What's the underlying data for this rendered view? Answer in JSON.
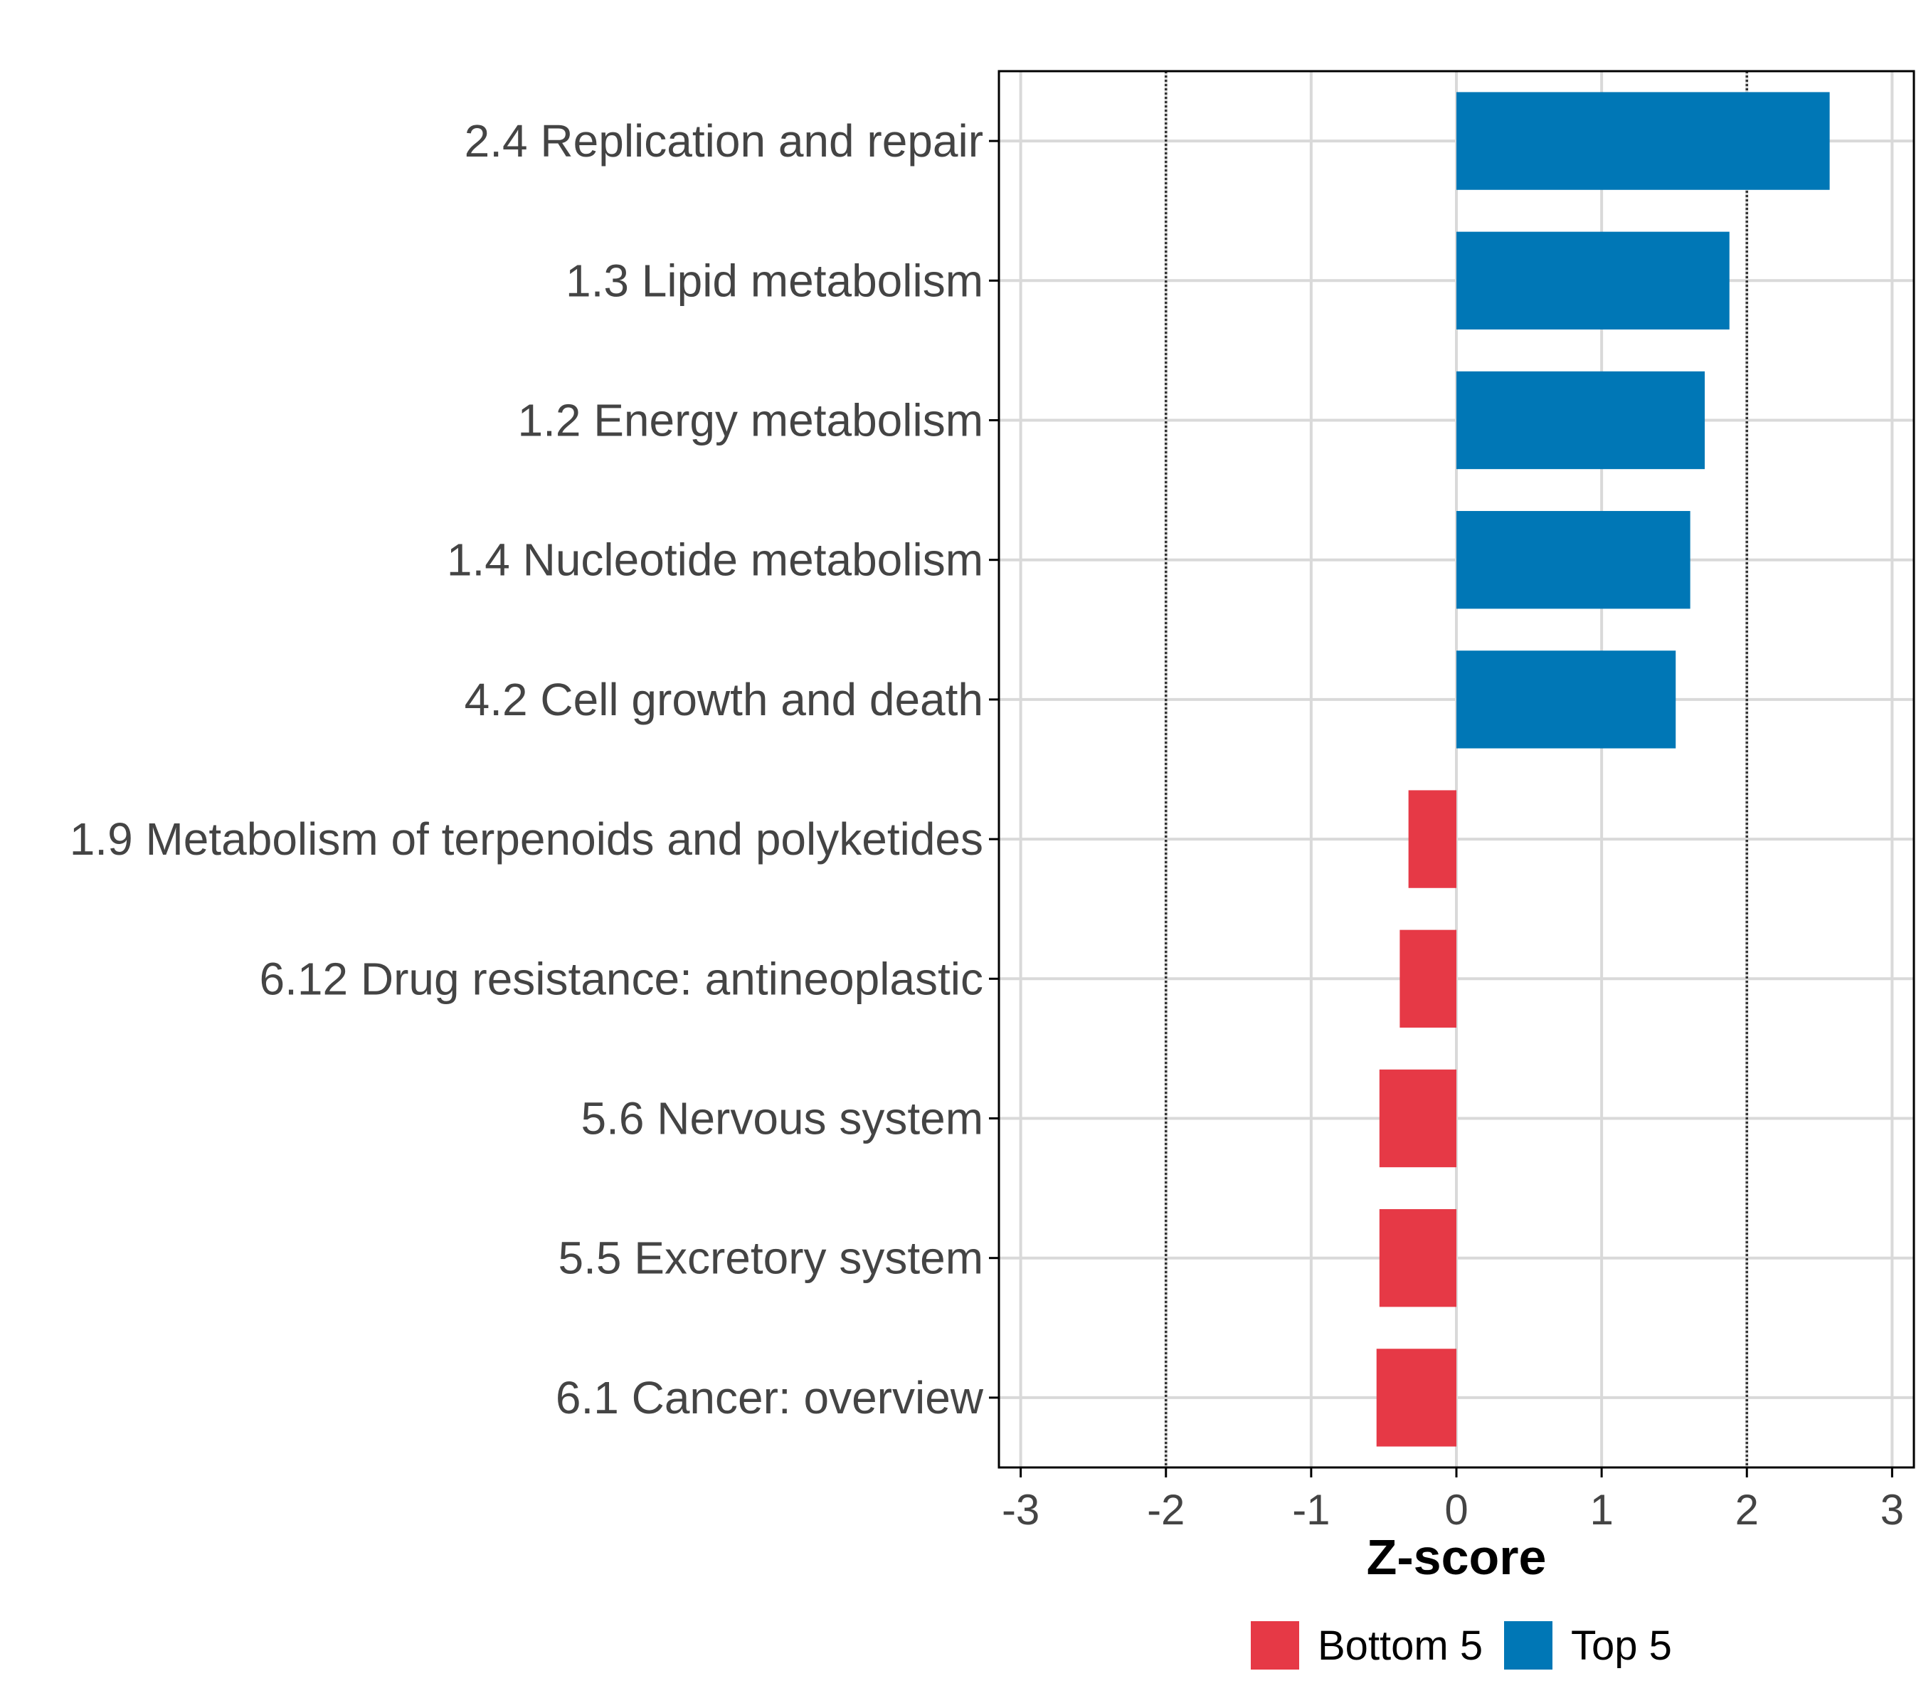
{
  "chart_data": {
    "type": "bar",
    "orientation": "horizontal",
    "categories": [
      "2.4 Replication and repair",
      "1.3 Lipid metabolism",
      "1.2 Energy metabolism",
      "1.4 Nucleotide metabolism",
      "4.2 Cell growth and death",
      "1.9 Metabolism of terpenoids and polyketides",
      "6.12 Drug resistance: antineoplastic",
      "5.6 Nervous system",
      "5.5 Excretory system",
      "6.1 Cancer: overview"
    ],
    "values": [
      2.57,
      1.88,
      1.71,
      1.61,
      1.51,
      -0.33,
      -0.39,
      -0.53,
      -0.53,
      -0.55
    ],
    "groups": [
      "Top 5",
      "Top 5",
      "Top 5",
      "Top 5",
      "Top 5",
      "Bottom 5",
      "Bottom 5",
      "Bottom 5",
      "Bottom 5",
      "Bottom 5"
    ],
    "xlabel": "Z-score",
    "ylabel": "",
    "xlim": [
      -3.15,
      3.15
    ],
    "xticks": [
      "-3",
      "-2",
      "-1",
      "0",
      "1",
      "2",
      "3"
    ],
    "reference_lines": [
      -2,
      2
    ],
    "legend": {
      "position": "bottom",
      "entries": [
        {
          "label": "Bottom 5",
          "color": "#E63946"
        },
        {
          "label": "Top 5",
          "color": "#0077B6"
        }
      ]
    },
    "grid": true
  },
  "colors": {
    "top": "#0077B6",
    "bottom": "#E63946",
    "grid": "#D9D9D9",
    "axis": "#000000",
    "text": "#444444"
  }
}
